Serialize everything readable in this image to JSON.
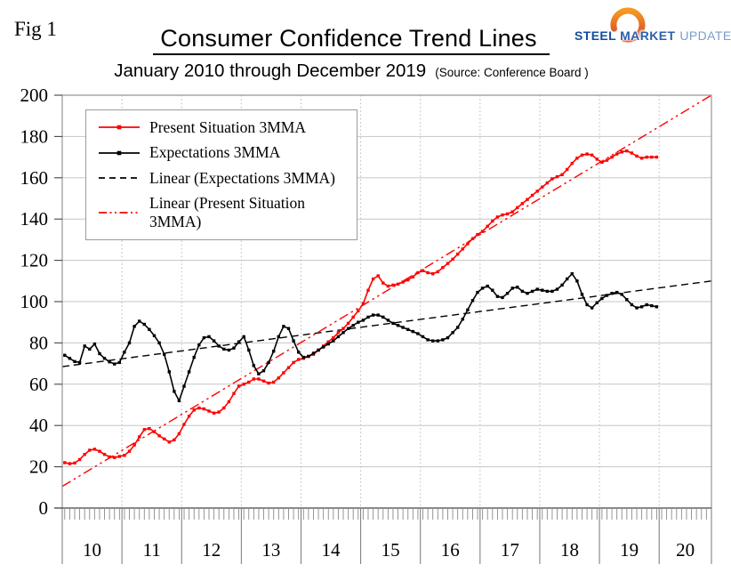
{
  "figure_label": "Fig 1",
  "title": "Consumer Confidence Trend Lines",
  "subtitle": "January 2010 through December 2019",
  "source": "(Source: Conference Board )",
  "logo": {
    "steel": "STEEL",
    "market": "MARKET",
    "update": "UPDATE",
    "steel_color": "#134f9e",
    "market_color": "#2e5fab",
    "update_color": "#7d9cc9",
    "swoosh_orange": "#f59a22",
    "swoosh_red": "#d5432a"
  },
  "chart_data": {
    "type": "line",
    "title": "Consumer Confidence Trend Lines",
    "x_period": "monthly",
    "x_start": "2010-01",
    "x_end": "2019-12",
    "x_tick_year_labels": [
      "10",
      "11",
      "12",
      "13",
      "14",
      "15",
      "16",
      "17",
      "18",
      "19",
      "20"
    ],
    "ylim": [
      0,
      200
    ],
    "y_ticks": [
      0,
      20,
      40,
      60,
      80,
      100,
      120,
      140,
      160,
      180,
      200
    ],
    "grid": true,
    "legend_position": "upper-left",
    "series": [
      {
        "name": "Present Situation 3MMA",
        "color": "#ff0000",
        "marker": "square",
        "values": [
          22.0,
          21.5,
          21.8,
          23.5,
          26.0,
          28.0,
          28.5,
          27.5,
          26.0,
          24.8,
          24.5,
          25.0,
          25.5,
          27.5,
          30.5,
          34.5,
          38.0,
          38.5,
          37.0,
          35.0,
          33.5,
          32.0,
          33.0,
          36.0,
          40.5,
          44.5,
          47.5,
          48.5,
          48.0,
          47.0,
          46.0,
          46.5,
          48.5,
          51.5,
          55.5,
          59.0,
          60.0,
          61.0,
          62.5,
          62.5,
          61.5,
          60.5,
          61.0,
          63.0,
          65.5,
          68.0,
          70.5,
          72.0,
          72.5,
          73.5,
          74.5,
          76.5,
          78.5,
          80.5,
          82.5,
          85.0,
          87.0,
          89.5,
          92.5,
          95.5,
          99.0,
          105.5,
          111.0,
          112.5,
          109.0,
          107.5,
          108.0,
          108.5,
          109.5,
          110.5,
          112.0,
          114.0,
          115.0,
          114.0,
          113.5,
          114.5,
          116.5,
          118.5,
          120.5,
          123.0,
          125.5,
          128.0,
          130.5,
          132.5,
          134.0,
          136.5,
          139.0,
          141.0,
          142.0,
          142.5,
          143.5,
          145.5,
          147.5,
          149.5,
          151.5,
          153.5,
          155.5,
          157.5,
          159.5,
          160.5,
          161.5,
          164.0,
          167.0,
          169.5,
          171.0,
          171.5,
          171.0,
          169.0,
          167.5,
          168.5,
          170.0,
          171.5,
          172.5,
          173.0,
          172.0,
          170.5,
          169.5,
          170.0,
          170.0,
          170.0
        ]
      },
      {
        "name": "Expectations 3MMA",
        "color": "#000000",
        "marker": "square",
        "values": [
          74.0,
          72.5,
          71.0,
          70.5,
          78.5,
          77.0,
          79.5,
          74.8,
          72.5,
          70.8,
          69.8,
          70.5,
          75.5,
          80.0,
          88.0,
          90.5,
          89.0,
          86.5,
          83.5,
          80.0,
          74.5,
          66.0,
          56.5,
          52.0,
          59.0,
          66.0,
          73.0,
          79.0,
          82.5,
          83.0,
          81.0,
          78.5,
          77.0,
          76.5,
          77.5,
          80.5,
          83.0,
          76.5,
          69.0,
          65.0,
          66.5,
          70.5,
          76.0,
          83.0,
          88.0,
          87.0,
          81.0,
          75.5,
          73.0,
          73.5,
          75.0,
          76.5,
          78.0,
          79.5,
          81.0,
          83.0,
          85.0,
          87.0,
          88.5,
          90.0,
          91.0,
          92.5,
          93.5,
          93.5,
          92.5,
          91.0,
          89.5,
          88.5,
          87.5,
          86.5,
          85.5,
          84.5,
          83.0,
          81.5,
          81.0,
          81.0,
          81.5,
          82.5,
          85.0,
          87.5,
          91.5,
          96.0,
          100.5,
          104.5,
          106.5,
          107.5,
          105.5,
          102.5,
          102.0,
          104.0,
          106.5,
          107.0,
          105.0,
          104.0,
          105.0,
          106.0,
          105.5,
          105.0,
          105.0,
          106.0,
          108.0,
          111.0,
          113.5,
          110.0,
          103.5,
          98.5,
          97.0,
          99.5,
          101.5,
          103.0,
          104.0,
          104.5,
          103.5,
          101.0,
          98.5,
          97.0,
          97.5,
          98.5,
          98.0,
          97.5
        ]
      }
    ],
    "trend_lines": [
      {
        "name": "Linear (Expectations 3MMA)",
        "color": "#000000",
        "dash": "dashed",
        "start_value": 68.5,
        "end_value": 110
      },
      {
        "name": "Linear (Present Situation 3MMA)",
        "color": "#ff0000",
        "dash": "dash-dot-dot",
        "start_value": 10.5,
        "end_value": 200
      }
    ],
    "legend": [
      {
        "label": "Present Situation 3MMA",
        "color": "#ff0000",
        "style": "solid-marker"
      },
      {
        "label": "Expectations 3MMA",
        "color": "#000000",
        "style": "solid-marker"
      },
      {
        "label": "Linear (Expectations 3MMA)",
        "color": "#000000",
        "style": "dashed"
      },
      {
        "label": "Linear (Present Situation 3MMA)",
        "color": "#ff0000",
        "style": "dash-dot-dot"
      }
    ]
  }
}
